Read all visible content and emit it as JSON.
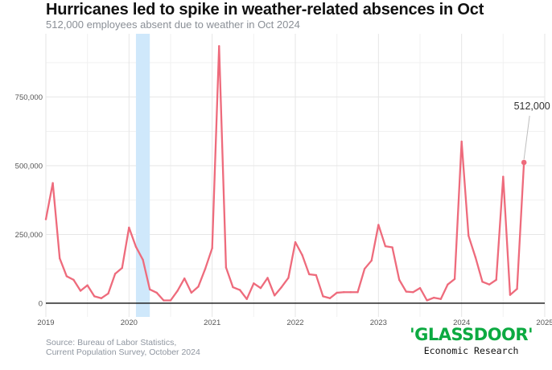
{
  "chart_data": {
    "type": "line",
    "title": "Hurricanes led to spike in weather-related absences in Oct",
    "subtitle": "512,000 employees absent due to weather in Oct 2024",
    "xlabel": "",
    "ylabel": "",
    "x_start": "2019-01",
    "x_end": "2024-10",
    "x_ticks": [
      "2019",
      "2020",
      "2021",
      "2022",
      "2023",
      "2024",
      "2025"
    ],
    "y_ticks": [
      "0",
      "250,000",
      "500,000",
      "750,000"
    ],
    "ylim": [
      -50000,
      980000
    ],
    "shaded_period": [
      "2020-02",
      "2020-04"
    ],
    "annotation": {
      "text": "512,000",
      "x": "2024-10",
      "y": 512000
    },
    "series": [
      {
        "color": "#ee6b7c",
        "values": [
          305000,
          437000,
          163000,
          98000,
          85000,
          45000,
          65000,
          25000,
          18000,
          35000,
          107000,
          128000,
          275000,
          205000,
          158000,
          50000,
          38000,
          10000,
          10000,
          45000,
          90000,
          38000,
          60000,
          125000,
          200000,
          935000,
          130000,
          58000,
          48000,
          15000,
          72000,
          55000,
          92000,
          28000,
          58000,
          92000,
          222000,
          175000,
          105000,
          102000,
          25000,
          18000,
          38000,
          40000,
          40000,
          40000,
          125000,
          155000,
          285000,
          207000,
          203000,
          85000,
          42000,
          40000,
          55000,
          10000,
          20000,
          15000,
          68000,
          88000,
          588000,
          245000,
          167000,
          78000,
          68000,
          85000,
          460000,
          30000,
          52000,
          512000
        ]
      }
    ],
    "grid": true
  },
  "source": {
    "line1": "Source: Bureau of Labor Statistics,",
    "line2": "Current Population Survey, October 2024"
  },
  "brand": {
    "logo_text": "'GLASSDOOR'",
    "tagline": "Economic Research",
    "logo_color": "#0caa41"
  }
}
